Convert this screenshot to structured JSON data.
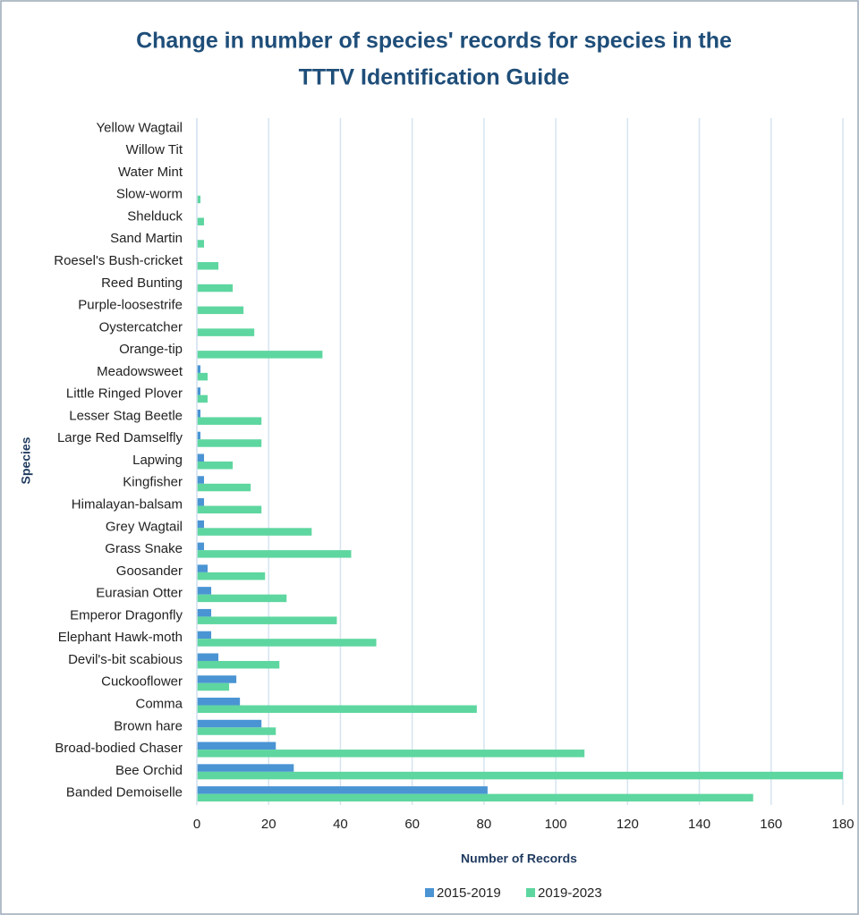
{
  "chart_data": {
    "type": "hbar",
    "title": [
      "Change in number of species' records for species in the",
      "TTTV Identification Guide"
    ],
    "x_label": "Number of Records",
    "y_label": "Species",
    "categories": [
      "Banded Demoiselle",
      "Bee Orchid",
      "Broad-bodied Chaser",
      "Brown hare",
      "Comma",
      "Cuckooflower",
      "Devil's-bit scabious",
      "Elephant Hawk-moth",
      "Emperor Dragonfly",
      "Eurasian Otter",
      "Goosander",
      "Grass Snake",
      "Grey Wagtail",
      "Himalayan-balsam",
      "Kingfisher",
      "Lapwing",
      "Large Red Damselfly",
      "Lesser Stag Beetle",
      "Little Ringed Plover",
      "Meadowsweet",
      "Orange-tip",
      "Oystercatcher",
      "Purple-loosestrife",
      "Reed Bunting",
      "Roesel's Bush-cricket",
      "Sand Martin",
      "Shelduck",
      "Slow-worm",
      "Water Mint",
      "Willow Tit",
      "Yellow Wagtail"
    ],
    "series": [
      {
        "name": "2015-2019",
        "color": "#4a94d4",
        "values": [
          81,
          27,
          22,
          18,
          12,
          11,
          6,
          4,
          4,
          4,
          3,
          2,
          2,
          2,
          2,
          2,
          1,
          1,
          1,
          1,
          0,
          0,
          0,
          0,
          0,
          0,
          0,
          0,
          0,
          0,
          0
        ]
      },
      {
        "name": "2019-2023",
        "color": "#5ed6a0",
        "values": [
          155,
          180,
          108,
          22,
          78,
          9,
          23,
          50,
          39,
          25,
          19,
          43,
          32,
          18,
          15,
          10,
          18,
          18,
          3,
          3,
          35,
          16,
          13,
          10,
          6,
          2,
          2,
          1,
          0,
          0,
          0
        ]
      }
    ],
    "xlim": [
      0,
      180
    ],
    "xticks": [
      0,
      20,
      40,
      60,
      80,
      100,
      120,
      140,
      160,
      180
    ],
    "grid": true,
    "legend": "bottom"
  }
}
